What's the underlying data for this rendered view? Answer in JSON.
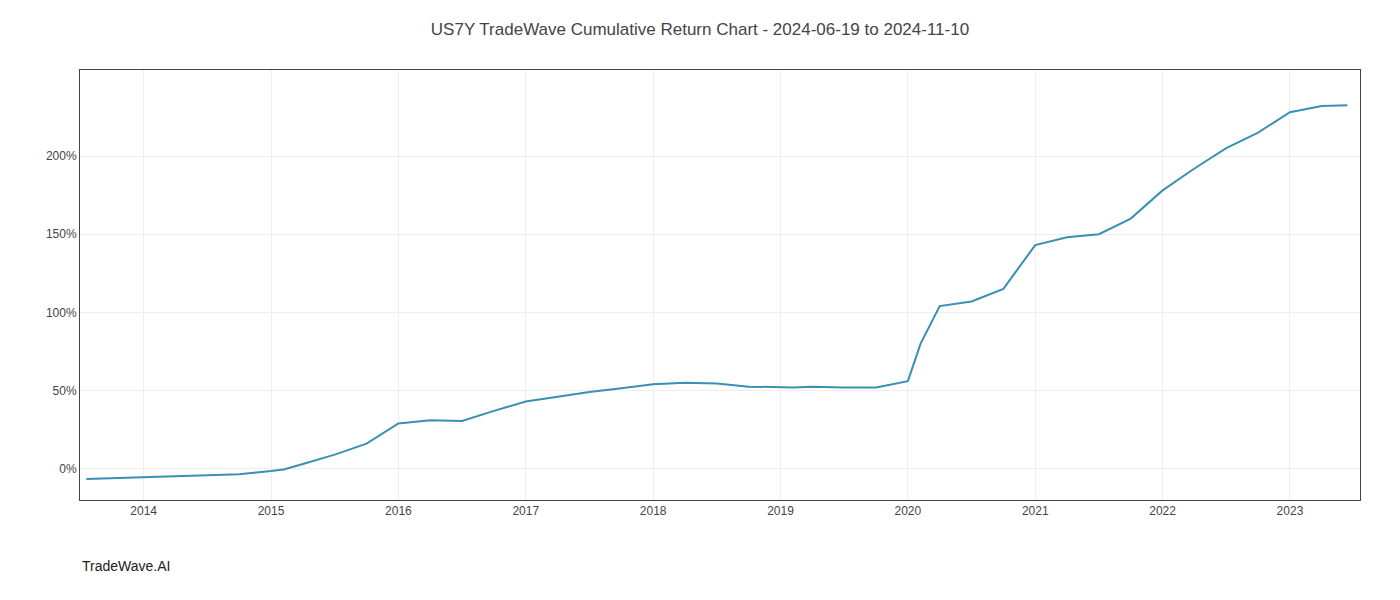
{
  "chart_data": {
    "type": "line",
    "title": "US7Y TradeWave Cumulative Return Chart - 2024-06-19 to 2024-11-10",
    "annotations": [
      {
        "text": "TradeWave.AI"
      }
    ],
    "x": [
      2013.55,
      2013.75,
      2014.0,
      2014.25,
      2014.5,
      2014.75,
      2015.0,
      2015.1,
      2015.25,
      2015.5,
      2015.75,
      2016.0,
      2016.25,
      2016.5,
      2016.75,
      2017.0,
      2017.25,
      2017.5,
      2017.75,
      2018.0,
      2018.25,
      2018.5,
      2018.75,
      2019.0,
      2019.1,
      2019.25,
      2019.5,
      2019.75,
      2020.0,
      2020.1,
      2020.25,
      2020.5,
      2020.75,
      2021.0,
      2021.25,
      2021.5,
      2021.75,
      2022.0,
      2022.25,
      2022.5,
      2022.75,
      2023.0,
      2023.25,
      2023.45
    ],
    "values": [
      -6.5,
      -6.0,
      -5.5,
      -5.0,
      -4.5,
      -3.5,
      -1.5,
      -0.5,
      3.0,
      9.0,
      16.0,
      29.0,
      31.0,
      30.5,
      37.0,
      43.0,
      46.0,
      49.0,
      51.5,
      54.0,
      55.0,
      54.5,
      52.5,
      52.0,
      52.0,
      52.5,
      52.0,
      52.0,
      56.0,
      80.0,
      104.0,
      107.0,
      115.0,
      143.0,
      148.0,
      150.0,
      160.0,
      178.0,
      192.0,
      205.0,
      215.0,
      228.0,
      232.0,
      232.5
    ],
    "color": "#3a8fb5",
    "xlim": [
      2013.5,
      2023.55
    ],
    "xticks": [
      2014,
      2015,
      2016,
      2017,
      2018,
      2019,
      2020,
      2021,
      2022,
      2023
    ],
    "ylim": [
      -20,
      255
    ],
    "yticks": [
      {
        "value": 0,
        "label": "0%"
      },
      {
        "value": 50,
        "label": "50%"
      },
      {
        "value": 100,
        "label": "100%"
      },
      {
        "value": 150,
        "label": "150%"
      },
      {
        "value": 200,
        "label": "200%"
      }
    ],
    "grid": true
  }
}
